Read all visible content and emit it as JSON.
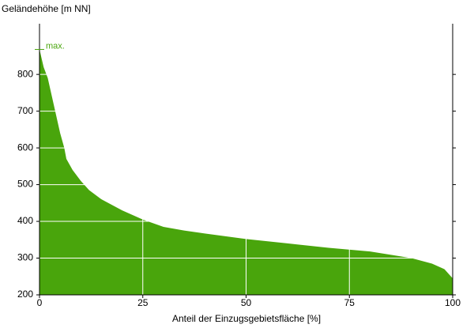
{
  "chart_data": {
    "type": "area",
    "y_label": "Geländehöhe [m NN]",
    "x_label": "Anteil der Einzugsgebietsfläche [%]",
    "annotation": "max.",
    "color": "#49a50c",
    "x": [
      0,
      1,
      2,
      3,
      4,
      5,
      6,
      6.5,
      8,
      10,
      12,
      15,
      20,
      25,
      30,
      35,
      40,
      50,
      60,
      70,
      80,
      90,
      95,
      98,
      100
    ],
    "values": [
      868,
      820,
      790,
      740,
      690,
      640,
      600,
      570,
      540,
      510,
      485,
      460,
      430,
      405,
      385,
      375,
      367,
      352,
      340,
      328,
      318,
      300,
      285,
      270,
      245
    ],
    "xlim": [
      0,
      100
    ],
    "xticks": [
      0,
      25,
      50,
      75,
      100
    ],
    "ylim": [
      200,
      938
    ],
    "yticks": [
      200,
      300,
      400,
      500,
      600,
      700,
      800
    ],
    "grid": true
  }
}
